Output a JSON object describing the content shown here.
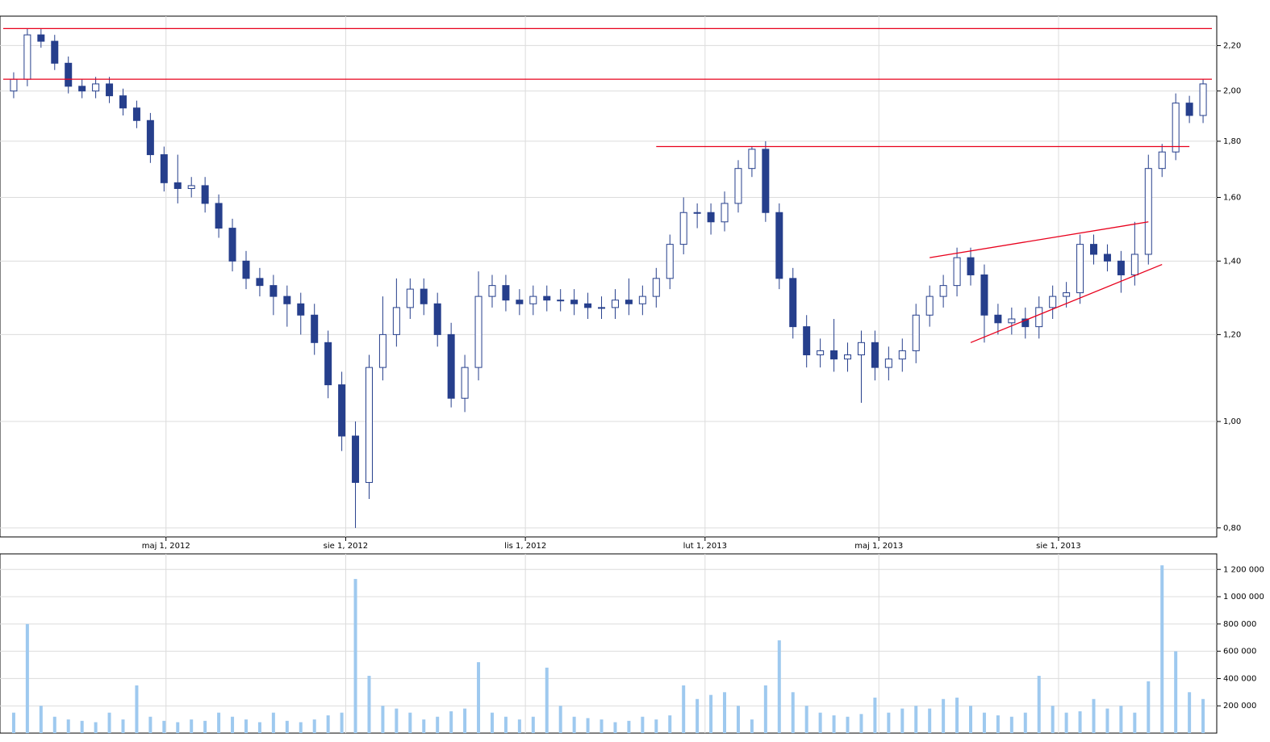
{
  "chart_data": [
    {
      "type": "candlestick",
      "color": "#263f8c",
      "up_fill": "#ffffff",
      "log_y": true,
      "grid": true,
      "line_color": "#e8001c",
      "xlim": [
        "2012-02-06",
        "2013-10-21"
      ],
      "xticks": [
        {
          "value": "2012-05-01",
          "label": "maj 1, 2012"
        },
        {
          "value": "2012-08-01",
          "label": "sie 1, 2012"
        },
        {
          "value": "2012-11-01",
          "label": "lis 1, 2012"
        },
        {
          "value": "2013-02-01",
          "label": "lut 1, 2013"
        },
        {
          "value": "2013-05-01",
          "label": "maj 1, 2013"
        },
        {
          "value": "2013-08-01",
          "label": "sie 1, 2013"
        }
      ],
      "ylim": [
        0.785,
        2.34
      ],
      "yticks": [
        {
          "value": 0.8,
          "label": "0,80"
        },
        {
          "value": 1,
          "label": "1,00"
        },
        {
          "value": 1.2,
          "label": "1,20"
        },
        {
          "value": 1.4,
          "label": "1,40"
        },
        {
          "value": 1.6,
          "label": "1,60"
        },
        {
          "value": 1.8,
          "label": "1,80"
        },
        {
          "value": 2,
          "label": "2,00"
        },
        {
          "value": 2.2,
          "label": "2,20"
        }
      ],
      "hlines": [
        2.28,
        2.05
      ],
      "segments": [
        {
          "x": [
            "2013-01-07",
            "2013-10-07"
          ],
          "y": [
            1.78,
            1.78
          ]
        },
        {
          "x": [
            "2013-05-27",
            "2013-09-16"
          ],
          "y": [
            1.41,
            1.52
          ]
        },
        {
          "x": [
            "2013-06-17",
            "2013-09-23"
          ],
          "y": [
            1.18,
            1.39
          ]
        }
      ],
      "x": [
        "2012-02-13",
        "2012-02-20",
        "2012-02-27",
        "2012-03-05",
        "2012-03-12",
        "2012-03-19",
        "2012-03-26",
        "2012-04-02",
        "2012-04-09",
        "2012-04-16",
        "2012-04-23",
        "2012-04-30",
        "2012-05-07",
        "2012-05-14",
        "2012-05-21",
        "2012-05-28",
        "2012-06-04",
        "2012-06-11",
        "2012-06-18",
        "2012-06-25",
        "2012-07-02",
        "2012-07-09",
        "2012-07-16",
        "2012-07-23",
        "2012-07-30",
        "2012-08-06",
        "2012-08-13",
        "2012-08-20",
        "2012-08-27",
        "2012-09-03",
        "2012-09-10",
        "2012-09-17",
        "2012-09-24",
        "2012-10-01",
        "2012-10-08",
        "2012-10-15",
        "2012-10-22",
        "2012-10-29",
        "2012-11-05",
        "2012-11-12",
        "2012-11-19",
        "2012-11-26",
        "2012-12-03",
        "2012-12-10",
        "2012-12-17",
        "2012-12-24",
        "2012-12-31",
        "2013-01-07",
        "2013-01-14",
        "2013-01-21",
        "2013-01-28",
        "2013-02-04",
        "2013-02-11",
        "2013-02-18",
        "2013-02-25",
        "2013-03-04",
        "2013-03-11",
        "2013-03-18",
        "2013-03-25",
        "2013-04-01",
        "2013-04-08",
        "2013-04-15",
        "2013-04-22",
        "2013-04-29",
        "2013-05-06",
        "2013-05-13",
        "2013-05-20",
        "2013-05-27",
        "2013-06-03",
        "2013-06-10",
        "2013-06-17",
        "2013-06-24",
        "2013-07-01",
        "2013-07-08",
        "2013-07-15",
        "2013-07-22",
        "2013-07-29",
        "2013-08-05",
        "2013-08-12",
        "2013-08-19",
        "2013-08-26",
        "2013-09-02",
        "2013-09-09",
        "2013-09-16",
        "2013-09-23",
        "2013-09-30",
        "2013-10-07",
        "2013-10-14"
      ],
      "candles": [
        [
          2.0,
          2.08,
          1.97,
          2.05
        ],
        [
          2.05,
          2.28,
          2.02,
          2.25
        ],
        [
          2.25,
          2.28,
          2.19,
          2.22
        ],
        [
          2.22,
          2.25,
          2.09,
          2.12
        ],
        [
          2.12,
          2.15,
          1.99,
          2.02
        ],
        [
          2.02,
          2.05,
          1.97,
          2.0
        ],
        [
          2.0,
          2.06,
          1.97,
          2.03
        ],
        [
          2.03,
          2.06,
          1.95,
          1.98
        ],
        [
          1.98,
          2.01,
          1.9,
          1.93
        ],
        [
          1.93,
          1.96,
          1.85,
          1.88
        ],
        [
          1.88,
          1.91,
          1.72,
          1.75
        ],
        [
          1.75,
          1.78,
          1.62,
          1.65
        ],
        [
          1.65,
          1.75,
          1.58,
          1.63
        ],
        [
          1.63,
          1.67,
          1.6,
          1.64
        ],
        [
          1.64,
          1.67,
          1.55,
          1.58
        ],
        [
          1.58,
          1.61,
          1.47,
          1.5
        ],
        [
          1.5,
          1.53,
          1.37,
          1.4
        ],
        [
          1.4,
          1.43,
          1.32,
          1.35
        ],
        [
          1.35,
          1.38,
          1.3,
          1.33
        ],
        [
          1.33,
          1.36,
          1.25,
          1.3
        ],
        [
          1.3,
          1.33,
          1.22,
          1.28
        ],
        [
          1.28,
          1.31,
          1.2,
          1.25
        ],
        [
          1.25,
          1.28,
          1.15,
          1.18
        ],
        [
          1.18,
          1.21,
          1.05,
          1.08
        ],
        [
          1.08,
          1.11,
          0.94,
          0.97
        ],
        [
          0.97,
          1.0,
          0.8,
          0.88
        ],
        [
          0.88,
          1.15,
          0.85,
          1.12
        ],
        [
          1.12,
          1.3,
          1.09,
          1.2
        ],
        [
          1.2,
          1.35,
          1.17,
          1.27
        ],
        [
          1.27,
          1.35,
          1.24,
          1.32
        ],
        [
          1.32,
          1.35,
          1.25,
          1.28
        ],
        [
          1.28,
          1.31,
          1.17,
          1.2
        ],
        [
          1.2,
          1.23,
          1.03,
          1.05
        ],
        [
          1.05,
          1.15,
          1.02,
          1.12
        ],
        [
          1.12,
          1.37,
          1.09,
          1.3
        ],
        [
          1.3,
          1.36,
          1.27,
          1.33
        ],
        [
          1.33,
          1.36,
          1.26,
          1.29
        ],
        [
          1.29,
          1.32,
          1.25,
          1.28
        ],
        [
          1.28,
          1.33,
          1.25,
          1.3
        ],
        [
          1.3,
          1.33,
          1.26,
          1.29
        ],
        [
          1.29,
          1.32,
          1.26,
          1.29
        ],
        [
          1.29,
          1.32,
          1.25,
          1.28
        ],
        [
          1.28,
          1.31,
          1.24,
          1.27
        ],
        [
          1.27,
          1.3,
          1.24,
          1.27
        ],
        [
          1.27,
          1.32,
          1.24,
          1.29
        ],
        [
          1.29,
          1.35,
          1.25,
          1.28
        ],
        [
          1.28,
          1.33,
          1.25,
          1.3
        ],
        [
          1.3,
          1.38,
          1.27,
          1.35
        ],
        [
          1.35,
          1.48,
          1.32,
          1.45
        ],
        [
          1.45,
          1.6,
          1.42,
          1.55
        ],
        [
          1.55,
          1.58,
          1.5,
          1.55
        ],
        [
          1.55,
          1.58,
          1.48,
          1.52
        ],
        [
          1.52,
          1.62,
          1.49,
          1.58
        ],
        [
          1.58,
          1.73,
          1.55,
          1.7
        ],
        [
          1.7,
          1.78,
          1.67,
          1.77
        ],
        [
          1.77,
          1.8,
          1.52,
          1.55
        ],
        [
          1.55,
          1.58,
          1.32,
          1.35
        ],
        [
          1.35,
          1.38,
          1.19,
          1.22
        ],
        [
          1.22,
          1.25,
          1.12,
          1.15
        ],
        [
          1.15,
          1.19,
          1.12,
          1.16
        ],
        [
          1.16,
          1.24,
          1.11,
          1.14
        ],
        [
          1.14,
          1.18,
          1.11,
          1.15
        ],
        [
          1.15,
          1.21,
          1.04,
          1.18
        ],
        [
          1.18,
          1.21,
          1.09,
          1.12
        ],
        [
          1.12,
          1.17,
          1.09,
          1.14
        ],
        [
          1.14,
          1.19,
          1.11,
          1.16
        ],
        [
          1.16,
          1.28,
          1.13,
          1.25
        ],
        [
          1.25,
          1.33,
          1.22,
          1.3
        ],
        [
          1.3,
          1.36,
          1.27,
          1.33
        ],
        [
          1.33,
          1.44,
          1.3,
          1.41
        ],
        [
          1.41,
          1.44,
          1.33,
          1.36
        ],
        [
          1.36,
          1.39,
          1.18,
          1.25
        ],
        [
          1.25,
          1.28,
          1.2,
          1.23
        ],
        [
          1.23,
          1.27,
          1.2,
          1.24
        ],
        [
          1.24,
          1.27,
          1.19,
          1.22
        ],
        [
          1.22,
          1.3,
          1.19,
          1.27
        ],
        [
          1.27,
          1.33,
          1.24,
          1.3
        ],
        [
          1.3,
          1.34,
          1.27,
          1.31
        ],
        [
          1.31,
          1.48,
          1.28,
          1.45
        ],
        [
          1.45,
          1.48,
          1.39,
          1.42
        ],
        [
          1.42,
          1.45,
          1.37,
          1.4
        ],
        [
          1.4,
          1.43,
          1.31,
          1.36
        ],
        [
          1.36,
          1.52,
          1.33,
          1.42
        ],
        [
          1.42,
          1.75,
          1.39,
          1.7
        ],
        [
          1.7,
          1.79,
          1.67,
          1.76
        ],
        [
          1.76,
          1.99,
          1.73,
          1.95
        ],
        [
          1.95,
          1.98,
          1.87,
          1.9
        ],
        [
          1.9,
          2.05,
          1.87,
          2.03
        ]
      ]
    },
    {
      "type": "bar",
      "color": "#9ec9ef",
      "grid": true,
      "xlim": [
        "2012-02-06",
        "2013-10-21"
      ],
      "ylim": [
        0,
        1314000
      ],
      "yticks": [
        {
          "value": 200000,
          "label": "200 000"
        },
        {
          "value": 400000,
          "label": "400 000"
        },
        {
          "value": 600000,
          "label": "600 000"
        },
        {
          "value": 800000,
          "label": "800 000"
        },
        {
          "value": 1000000,
          "label": "1 000 000"
        },
        {
          "value": 1200000,
          "label": "1 200 000"
        }
      ],
      "x": [
        "2012-02-13",
        "2012-02-20",
        "2012-02-27",
        "2012-03-05",
        "2012-03-12",
        "2012-03-19",
        "2012-03-26",
        "2012-04-02",
        "2012-04-09",
        "2012-04-16",
        "2012-04-23",
        "2012-04-30",
        "2012-05-07",
        "2012-05-14",
        "2012-05-21",
        "2012-05-28",
        "2012-06-04",
        "2012-06-11",
        "2012-06-18",
        "2012-06-25",
        "2012-07-02",
        "2012-07-09",
        "2012-07-16",
        "2012-07-23",
        "2012-07-30",
        "2012-08-06",
        "2012-08-13",
        "2012-08-20",
        "2012-08-27",
        "2012-09-03",
        "2012-09-10",
        "2012-09-17",
        "2012-09-24",
        "2012-10-01",
        "2012-10-08",
        "2012-10-15",
        "2012-10-22",
        "2012-10-29",
        "2012-11-05",
        "2012-11-12",
        "2012-11-19",
        "2012-11-26",
        "2012-12-03",
        "2012-12-10",
        "2012-12-17",
        "2012-12-24",
        "2012-12-31",
        "2013-01-07",
        "2013-01-14",
        "2013-01-21",
        "2013-01-28",
        "2013-02-04",
        "2013-02-11",
        "2013-02-18",
        "2013-02-25",
        "2013-03-04",
        "2013-03-11",
        "2013-03-18",
        "2013-03-25",
        "2013-04-01",
        "2013-04-08",
        "2013-04-15",
        "2013-04-22",
        "2013-04-29",
        "2013-05-06",
        "2013-05-13",
        "2013-05-20",
        "2013-05-27",
        "2013-06-03",
        "2013-06-10",
        "2013-06-17",
        "2013-06-24",
        "2013-07-01",
        "2013-07-08",
        "2013-07-15",
        "2013-07-22",
        "2013-07-29",
        "2013-08-05",
        "2013-08-12",
        "2013-08-19",
        "2013-08-26",
        "2013-09-02",
        "2013-09-09",
        "2013-09-16",
        "2013-09-23",
        "2013-09-30",
        "2013-10-07",
        "2013-10-14"
      ],
      "values": [
        150000,
        800000,
        200000,
        120000,
        100000,
        90000,
        80000,
        150000,
        100000,
        350000,
        120000,
        90000,
        80000,
        100000,
        90000,
        150000,
        120000,
        100000,
        80000,
        150000,
        90000,
        80000,
        100000,
        130000,
        150000,
        1130000,
        420000,
        200000,
        180000,
        150000,
        100000,
        120000,
        160000,
        180000,
        520000,
        150000,
        120000,
        100000,
        120000,
        480000,
        200000,
        120000,
        110000,
        100000,
        80000,
        90000,
        120000,
        100000,
        130000,
        350000,
        250000,
        280000,
        300000,
        200000,
        100000,
        350000,
        680000,
        300000,
        200000,
        150000,
        130000,
        120000,
        140000,
        260000,
        150000,
        180000,
        200000,
        180000,
        250000,
        260000,
        200000,
        150000,
        130000,
        120000,
        150000,
        420000,
        200000,
        150000,
        160000,
        250000,
        180000,
        200000,
        150000,
        380000,
        1230000,
        600000,
        300000,
        250000
      ]
    }
  ]
}
